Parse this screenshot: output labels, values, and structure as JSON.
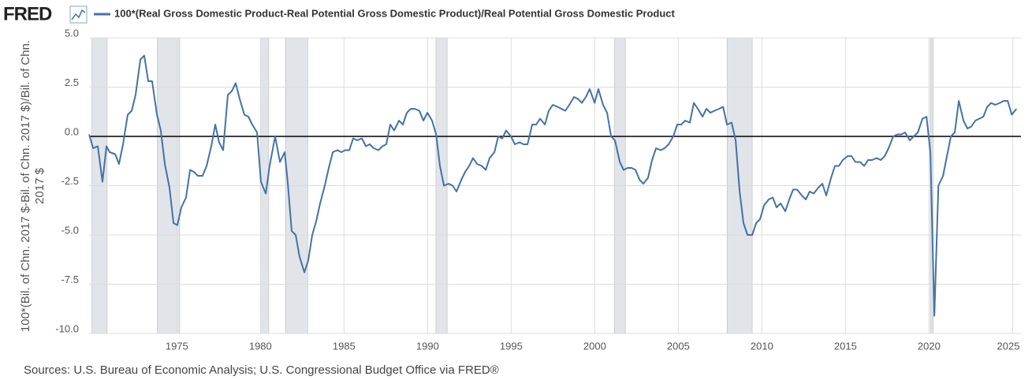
{
  "chart_data": {
    "type": "line",
    "logo": "FRED",
    "ylabel": "100*(Bil. of Chn. 2017 $-Bil. of Chn. 2017 $)/Bil. of Chn. 2017 $",
    "source": "Sources: U.S. Bureau of Economic Analysis; U.S. Congressional Budget Office via FRED®",
    "xlim": [
      1969.75,
      2025.5
    ],
    "xticks": [
      1975,
      1980,
      1985,
      1990,
      1995,
      2000,
      2005,
      2010,
      2015,
      2020,
      2025
    ],
    "ylim": [
      -10,
      5
    ],
    "yticks": [
      {
        "value": 5,
        "label": "5.0"
      },
      2.5,
      {
        "value": 0,
        "label": "0.0"
      },
      -2.5,
      {
        "value": -5,
        "label": "-5.0"
      },
      -7.5,
      {
        "value": -10,
        "label": "-10.0"
      }
    ],
    "grid": true,
    "zero_line": true,
    "recession_color": "#e1e4e8",
    "recessions": [
      [
        1969.92,
        1970.83
      ],
      [
        1973.83,
        1975.17
      ],
      [
        1980.0,
        1980.5
      ],
      [
        1981.5,
        1982.83
      ],
      [
        1990.5,
        1991.17
      ],
      [
        2001.17,
        2001.83
      ],
      [
        2007.92,
        2009.42
      ],
      [
        2020.08,
        2020.25
      ]
    ],
    "x": [
      1969.75,
      1969.99,
      1970.27,
      1970.55,
      1970.79,
      1970.98,
      1971.31,
      1971.54,
      1971.78,
      1972.06,
      1972.3,
      1972.53,
      1972.82,
      1973.05,
      1973.29,
      1973.52,
      1973.81,
      1974.04,
      1974.28,
      1974.56,
      1974.8,
      1975.03,
      1975.27,
      1975.55,
      1975.79,
      1976.02,
      1976.26,
      1976.54,
      1976.78,
      1977.06,
      1977.3,
      1977.53,
      1977.77,
      1978.05,
      1978.29,
      1978.52,
      1978.76,
      1979.04,
      1979.28,
      1979.51,
      1979.8,
      1980.03,
      1980.32,
      1980.55,
      1980.88,
      1981.17,
      1981.45,
      1981.64,
      1981.87,
      1982.11,
      1982.34,
      1982.63,
      1982.86,
      1983.1,
      1983.34,
      1983.57,
      1983.85,
      1984.09,
      1984.33,
      1984.61,
      1984.84,
      1985.08,
      1985.32,
      1985.55,
      1985.79,
      1986.07,
      1986.31,
      1986.54,
      1986.78,
      1987.06,
      1987.3,
      1987.53,
      1987.77,
      1988.0,
      1988.29,
      1988.52,
      1988.76,
      1989.0,
      1989.23,
      1989.51,
      1989.75,
      1989.99,
      1990.27,
      1990.51,
      1990.74,
      1990.98,
      1991.26,
      1991.5,
      1991.73,
      1992.02,
      1992.25,
      1992.49,
      1992.72,
      1992.96,
      1993.24,
      1993.48,
      1993.71,
      1994.0,
      1994.23,
      1994.47,
      1994.7,
      1994.99,
      1995.22,
      1995.51,
      1995.74,
      1995.98,
      1996.26,
      1996.5,
      1996.73,
      1997.02,
      1997.25,
      1997.49,
      1997.77,
      1998.01,
      1998.24,
      1998.48,
      1998.76,
      1999.0,
      1999.23,
      1999.47,
      1999.7,
      1999.99,
      2000.22,
      2000.5,
      2000.74,
      2000.98,
      2001.21,
      2001.5,
      2001.73,
      2001.97,
      2002.2,
      2002.44,
      2002.68,
      2002.91,
      2003.19,
      2003.43,
      2003.67,
      2003.95,
      2004.18,
      2004.42,
      2004.7,
      2004.94,
      2005.17,
      2005.41,
      2005.69,
      2005.93,
      2006.17,
      2006.45,
      2006.68,
      2006.92,
      2007.16,
      2007.44,
      2007.68,
      2007.91,
      2008.19,
      2008.43,
      2008.67,
      2008.9,
      2009.14,
      2009.42,
      2009.66,
      2009.89,
      2010.13,
      2010.41,
      2010.65,
      2010.88,
      2011.12,
      2011.4,
      2011.64,
      2011.87,
      2012.11,
      2012.39,
      2012.63,
      2012.86,
      2013.1,
      2013.38,
      2013.62,
      2013.85,
      2014.14,
      2014.37,
      2014.61,
      2014.84,
      2015.13,
      2015.36,
      2015.6,
      2015.88,
      2016.12,
      2016.35,
      2016.59,
      2016.87,
      2017.11,
      2017.35,
      2017.58,
      2017.86,
      2018.1,
      2018.34,
      2018.57,
      2018.85,
      2019.09,
      2019.33,
      2019.61,
      2019.85,
      2020.08,
      2020.32,
      2020.56,
      2020.84,
      2021.07,
      2021.31,
      2021.54,
      2021.78,
      2022.06,
      2022.3,
      2022.53,
      2022.77,
      2023.01,
      2023.25,
      2023.48,
      2023.72,
      2023.96,
      2024.24,
      2024.48,
      2024.71,
      2024.95,
      2025.23
    ],
    "series": [
      {
        "name": "100*(Real Gross Domestic Product-Real Potential Gross Domestic Product)/Real Potential Gross Domestic Product",
        "color": "#4572a7",
        "values": [
          0.1,
          -0.6,
          -0.5,
          -2.3,
          -0.5,
          -0.8,
          -0.9,
          -1.4,
          -0.4,
          1.1,
          1.3,
          2.1,
          3.9,
          4.1,
          2.8,
          2.8,
          1.1,
          0.3,
          -1.4,
          -2.6,
          -4.4,
          -4.5,
          -3.6,
          -3.1,
          -1.7,
          -1.8,
          -2.0,
          -2.0,
          -1.5,
          -0.5,
          0.6,
          -0.3,
          -0.7,
          2.1,
          2.3,
          2.7,
          1.9,
          1.1,
          1.0,
          0.6,
          0.2,
          -2.3,
          -2.9,
          -1.5,
          0.0,
          -1.3,
          -0.8,
          -2.4,
          -4.8,
          -5.0,
          -6.1,
          -6.9,
          -6.3,
          -5.0,
          -4.3,
          -3.4,
          -2.5,
          -1.6,
          -0.8,
          -0.7,
          -0.8,
          -0.7,
          -0.7,
          -0.1,
          -0.2,
          -0.1,
          -0.5,
          -0.4,
          -0.6,
          -0.7,
          -0.5,
          -0.4,
          0.6,
          0.3,
          0.8,
          0.6,
          1.2,
          1.4,
          1.4,
          1.3,
          0.8,
          1.2,
          0.8,
          0.1,
          -1.5,
          -2.5,
          -2.4,
          -2.5,
          -2.8,
          -2.2,
          -1.8,
          -1.5,
          -1.1,
          -1.4,
          -1.5,
          -1.7,
          -1.1,
          -0.8,
          0.0,
          -0.1,
          0.3,
          0.0,
          -0.4,
          -0.3,
          -0.4,
          -0.4,
          0.6,
          0.6,
          0.9,
          0.6,
          1.3,
          1.6,
          1.5,
          1.4,
          1.3,
          1.6,
          2.0,
          1.9,
          1.7,
          2.0,
          2.4,
          1.7,
          2.4,
          1.6,
          1.2,
          0.0,
          -0.2,
          -1.3,
          -1.7,
          -1.6,
          -1.6,
          -1.7,
          -2.2,
          -2.4,
          -2.1,
          -1.2,
          -0.6,
          -0.7,
          -0.6,
          -0.4,
          0.0,
          0.6,
          0.6,
          0.8,
          0.7,
          1.7,
          1.4,
          1.0,
          1.4,
          1.2,
          1.3,
          1.4,
          1.5,
          0.6,
          0.7,
          -0.2,
          -2.8,
          -4.4,
          -5.0,
          -5.0,
          -4.4,
          -4.2,
          -3.5,
          -3.2,
          -3.1,
          -3.6,
          -3.4,
          -3.8,
          -3.2,
          -2.7,
          -2.7,
          -3.0,
          -3.2,
          -2.8,
          -2.9,
          -2.6,
          -2.4,
          -3.0,
          -2.1,
          -1.5,
          -1.5,
          -1.2,
          -1.0,
          -1.0,
          -1.3,
          -1.3,
          -1.5,
          -1.2,
          -1.2,
          -1.1,
          -1.2,
          -1.0,
          -0.6,
          0.0,
          0.1,
          0.1,
          0.2,
          -0.2,
          0.0,
          0.2,
          0.9,
          1.0,
          -0.8,
          -9.1,
          -2.5,
          -2.0,
          -1.0,
          0.0,
          0.2,
          1.8,
          0.8,
          0.4,
          0.5,
          0.8,
          0.9,
          1.0,
          1.5,
          1.7,
          1.6,
          1.7,
          1.8,
          1.8,
          1.1,
          1.4
        ]
      }
    ]
  }
}
